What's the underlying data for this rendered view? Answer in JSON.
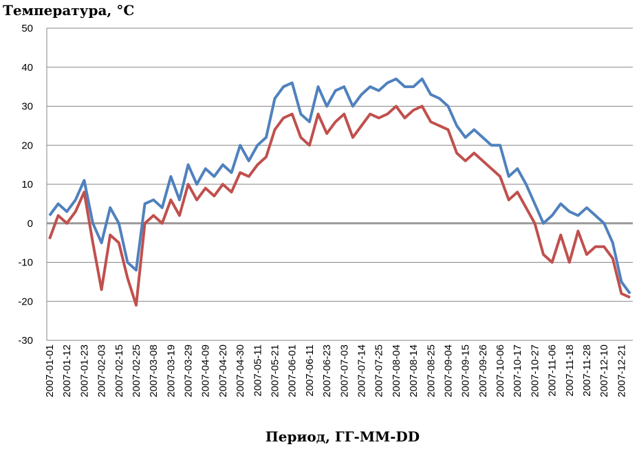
{
  "chart_data": {
    "type": "line",
    "y_title": "Температура, °С",
    "x_title": "Период, ГГ-ММ-DD",
    "categories": [
      "2007-01-01",
      null,
      "2007-01-12",
      null,
      "2007-01-23",
      null,
      "2007-02-03",
      null,
      "2007-02-15",
      null,
      "2007-02-25",
      null,
      "2007-03-08",
      null,
      "2007-03-19",
      null,
      "2007-03-29",
      null,
      "2007-04-09",
      null,
      "2007-04-20",
      null,
      "2007-04-30",
      null,
      "2007-05-11",
      null,
      "2007-05-21",
      null,
      "2007-06-01",
      null,
      "2007-06-11",
      null,
      "2007-06-23",
      null,
      "2007-07-03",
      null,
      "2007-07-14",
      null,
      "2007-07-25",
      null,
      "2007-08-04",
      null,
      "2007-08-14",
      null,
      "2007-08-25",
      null,
      "2007-09-04",
      null,
      "2007-09-15",
      null,
      "2007-09-26",
      null,
      "2007-10-06",
      null,
      "2007-10-17",
      null,
      "2007-10-27",
      null,
      "2007-11-06",
      null,
      "2007-11-18",
      null,
      "2007-11-28",
      null,
      "2007-12-10",
      null,
      "2007-12-21",
      null
    ],
    "series": [
      {
        "color": "#4f81bd",
        "values": [
          2,
          5,
          3,
          6,
          11,
          0,
          -5,
          4,
          0,
          -10,
          -12,
          5,
          6,
          4,
          12,
          6,
          15,
          10,
          14,
          12,
          15,
          13,
          20,
          16,
          20,
          22,
          32,
          35,
          36,
          28,
          26,
          35,
          30,
          34,
          35,
          30,
          33,
          35,
          34,
          36,
          37,
          35,
          35,
          37,
          33,
          32,
          30,
          25,
          22,
          24,
          22,
          20,
          20,
          12,
          14,
          10,
          5,
          0,
          2,
          5,
          3,
          2,
          4,
          2,
          0,
          -5,
          -15,
          -18
        ]
      },
      {
        "color": "#c0504d",
        "values": [
          -4,
          2,
          0,
          3,
          8,
          -5,
          -17,
          -3,
          -5,
          -14,
          -21,
          0,
          2,
          0,
          6,
          2,
          10,
          6,
          9,
          7,
          10,
          8,
          13,
          12,
          15,
          17,
          24,
          27,
          28,
          22,
          20,
          28,
          23,
          26,
          28,
          22,
          25,
          28,
          27,
          28,
          30,
          27,
          29,
          30,
          26,
          25,
          24,
          18,
          16,
          18,
          16,
          14,
          12,
          6,
          8,
          4,
          0,
          -8,
          -10,
          -3,
          -10,
          -2,
          -8,
          -6,
          -6,
          -9,
          -18,
          -19
        ]
      }
    ],
    "ylim": [
      -30,
      50
    ],
    "yticks": [
      -30,
      -20,
      -10,
      0,
      10,
      20,
      30,
      40,
      50
    ],
    "grid": true
  }
}
